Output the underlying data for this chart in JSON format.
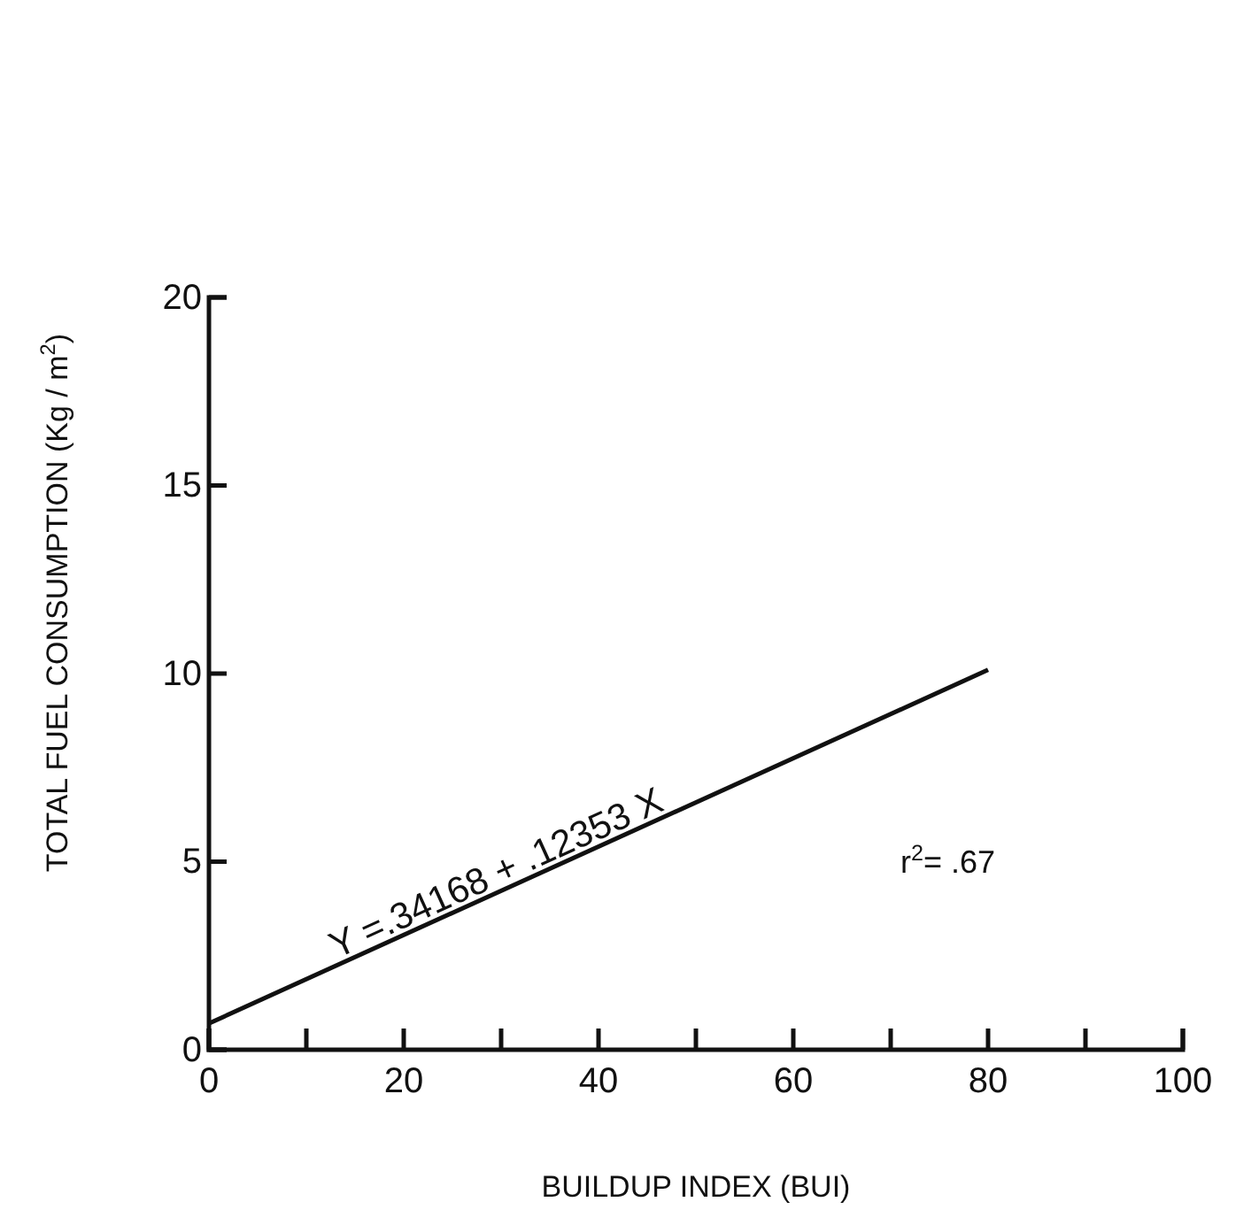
{
  "chart_data": {
    "type": "line",
    "xlabel": "BUILDUP INDEX (BUI)",
    "ylabel": "TOTAL FUEL CONSUMPTION (Kg / m$^{2}$)",
    "x": [
      0,
      80
    ],
    "series": [
      {
        "color": "#111111",
        "values": [
          0.7,
          10.1
        ]
      }
    ],
    "xlim": [
      0,
      100
    ],
    "xticks": [
      0,
      {
        "value": 10,
        "label": null
      },
      20,
      {
        "value": 30,
        "label": null
      },
      40,
      {
        "value": 50,
        "label": null
      },
      60,
      {
        "value": 70,
        "label": null
      },
      80,
      {
        "value": 90,
        "label": null
      },
      100
    ],
    "ylim": [
      0,
      20
    ],
    "yticks": [
      0,
      5,
      10,
      15,
      20
    ],
    "grid": false,
    "marker": "none",
    "line_style": "solid",
    "annotations": [
      {
        "text": "Y =.34168 + .12353 X",
        "x": 30,
        "y": 4.4
      },
      "r$^{2}$= .67"
    ]
  }
}
